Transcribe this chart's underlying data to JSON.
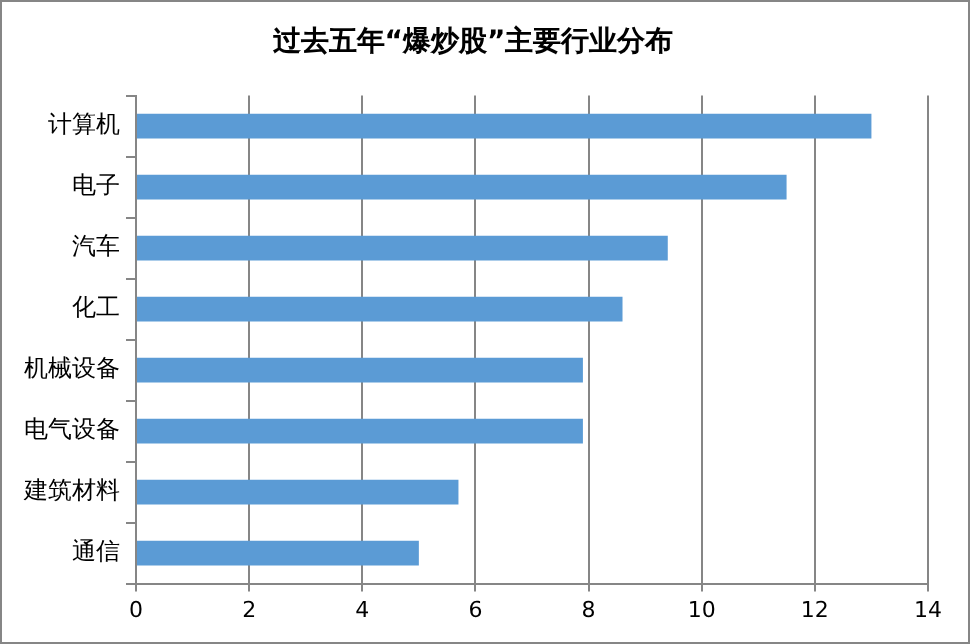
{
  "chart_data": {
    "type": "bar",
    "orientation": "horizontal",
    "title": "过去五年“爆炒股”主要行业分布",
    "categories": [
      "计算机",
      "电子",
      "汽车",
      "化工",
      "机械设备",
      "电气设备",
      "建筑材料",
      "通信"
    ],
    "values": [
      13,
      11.5,
      9.4,
      8.6,
      7.9,
      7.9,
      5.7,
      5
    ],
    "color": "#5b9bd5",
    "xlim": [
      0,
      14
    ],
    "xticks": [
      0,
      2,
      4,
      6,
      8,
      10,
      12,
      14
    ],
    "grid": "x",
    "legend": false
  }
}
